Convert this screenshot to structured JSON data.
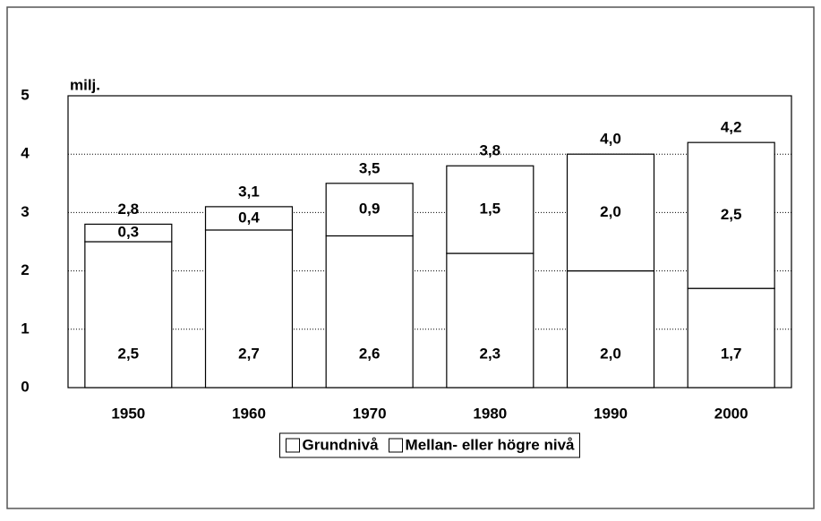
{
  "chart_data": {
    "type": "stacked_bar",
    "y_label": "milj.",
    "categories": [
      "1950",
      "1960",
      "1970",
      "1980",
      "1990",
      "2000"
    ],
    "series": [
      {
        "name": "Grundnivå",
        "color": "#ffffff",
        "values": [
          2.5,
          2.7,
          2.6,
          2.3,
          2.0,
          1.7
        ],
        "value_labels": [
          "2,5",
          "2,7",
          "2,6",
          "2,3",
          "2,0",
          "1,7"
        ]
      },
      {
        "name": "Mellan- eller högre nivå",
        "color": "#ffffff",
        "values": [
          0.3,
          0.4,
          0.9,
          1.5,
          2.0,
          2.5
        ],
        "value_labels": [
          "0,3",
          "0,4",
          "0,9",
          "1,5",
          "2,0",
          "2,5"
        ]
      }
    ],
    "totals": [
      2.8,
      3.1,
      3.5,
      3.8,
      4.0,
      4.2
    ],
    "total_labels": [
      "2,8",
      "3,1",
      "3,5",
      "3,8",
      "4,0",
      "4,2"
    ],
    "ylim": [
      0,
      5
    ],
    "yticks": [
      0,
      1,
      2,
      3,
      4,
      5
    ],
    "grid": true,
    "legend": "bottom"
  }
}
